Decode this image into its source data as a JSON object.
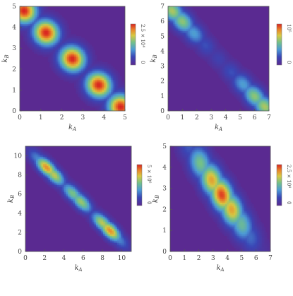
{
  "chart_data": [
    {
      "type": "heatmap",
      "xlabel": "k_A",
      "ylabel": "k_B",
      "xlim": [
        0,
        5
      ],
      "ylim": [
        0,
        5
      ],
      "xticks": [
        "0",
        "1",
        "2",
        "3",
        "4",
        "5"
      ],
      "yticks": [
        "0",
        "1",
        "2",
        "3",
        "4",
        "5"
      ],
      "colorbar": {
        "min_label": "0",
        "max_label": "2.5 × 10⁴",
        "max": 25000
      },
      "band": {
        "sum": 5,
        "width": 0.42
      },
      "peaks": [
        {
          "x": 0.2,
          "y": 4.8,
          "z": 25000
        },
        {
          "x": 1.25,
          "y": 3.75,
          "z": 25000
        },
        {
          "x": 2.5,
          "y": 2.5,
          "z": 25000
        },
        {
          "x": 3.75,
          "y": 1.25,
          "z": 25000
        },
        {
          "x": 4.8,
          "y": 0.2,
          "z": 25000
        }
      ]
    },
    {
      "type": "heatmap",
      "xlabel": "k_A",
      "ylabel": "k_B",
      "xlim": [
        0,
        7
      ],
      "ylim": [
        0,
        7
      ],
      "xticks": [
        "0",
        "1",
        "2",
        "3",
        "4",
        "5",
        "6",
        "7"
      ],
      "yticks": [
        "0",
        "1",
        "2",
        "3",
        "4",
        "5",
        "6",
        "7"
      ],
      "colorbar": {
        "min_label": "0",
        "max_label": "10⁵",
        "max": 100000
      },
      "band": {
        "sum": 7,
        "width": 0.45
      },
      "peaks": [
        {
          "x": 0.3,
          "y": 6.7,
          "z": 65000
        },
        {
          "x": 1.0,
          "y": 6.0,
          "z": 60000
        },
        {
          "x": 1.8,
          "y": 5.2,
          "z": 40000
        },
        {
          "x": 2.6,
          "y": 4.4,
          "z": 22000
        },
        {
          "x": 3.5,
          "y": 3.5,
          "z": 16000
        },
        {
          "x": 4.4,
          "y": 2.6,
          "z": 22000
        },
        {
          "x": 5.2,
          "y": 1.8,
          "z": 40000
        },
        {
          "x": 6.0,
          "y": 1.0,
          "z": 60000
        },
        {
          "x": 6.7,
          "y": 0.3,
          "z": 65000
        }
      ]
    },
    {
      "type": "heatmap",
      "xlabel": "k_A",
      "ylabel": "k_B",
      "xlim": [
        0,
        11
      ],
      "ylim": [
        0,
        11
      ],
      "xticks": [
        "0",
        "2",
        "4",
        "6",
        "8",
        "10"
      ],
      "yticks": [
        "0",
        "2",
        "4",
        "6",
        "8",
        "10"
      ],
      "colorbar": {
        "min_label": "0",
        "max_label": "5 × 10⁶",
        "max": 5000000
      },
      "band": {
        "sum": 11,
        "width": 0.5
      },
      "peaks": [
        {
          "x": 0.5,
          "y": 10.5,
          "z": 600000
        },
        {
          "x": 1.3,
          "y": 9.7,
          "z": 1700000
        },
        {
          "x": 2.2,
          "y": 8.8,
          "z": 4200000
        },
        {
          "x": 3.0,
          "y": 8.0,
          "z": 3400000
        },
        {
          "x": 4.9,
          "y": 6.1,
          "z": 2800000
        },
        {
          "x": 5.8,
          "y": 5.2,
          "z": 3100000
        },
        {
          "x": 8.0,
          "y": 3.0,
          "z": 3400000
        },
        {
          "x": 8.8,
          "y": 2.2,
          "z": 4200000
        },
        {
          "x": 9.7,
          "y": 1.3,
          "z": 1700000
        },
        {
          "x": 10.5,
          "y": 0.5,
          "z": 600000
        }
      ]
    },
    {
      "type": "heatmap",
      "xlabel": "k_A",
      "ylabel": "k_B",
      "xlim": [
        0,
        7
      ],
      "ylim": [
        0,
        5
      ],
      "xticks": [
        "0",
        "1",
        "2",
        "3",
        "4",
        "5",
        "6",
        "7"
      ],
      "yticks": [
        "0",
        "1",
        "2",
        "3",
        "4",
        "5"
      ],
      "colorbar": {
        "min_label": "0",
        "max_label": "2.5 × 10⁴",
        "max": 25000
      },
      "band": {
        "sum": 6.3,
        "width": 0.5
      },
      "peaks": [
        {
          "x": 1.3,
          "y": 5.0,
          "z": 6000
        },
        {
          "x": 2.1,
          "y": 4.2,
          "z": 14000
        },
        {
          "x": 2.9,
          "y": 3.4,
          "z": 20000
        },
        {
          "x": 3.6,
          "y": 2.7,
          "z": 24000
        },
        {
          "x": 4.3,
          "y": 2.0,
          "z": 20000
        },
        {
          "x": 5.0,
          "y": 1.3,
          "z": 13000
        },
        {
          "x": 5.6,
          "y": 0.7,
          "z": 7000
        },
        {
          "x": 6.2,
          "y": 0.1,
          "z": 2500
        }
      ]
    }
  ]
}
